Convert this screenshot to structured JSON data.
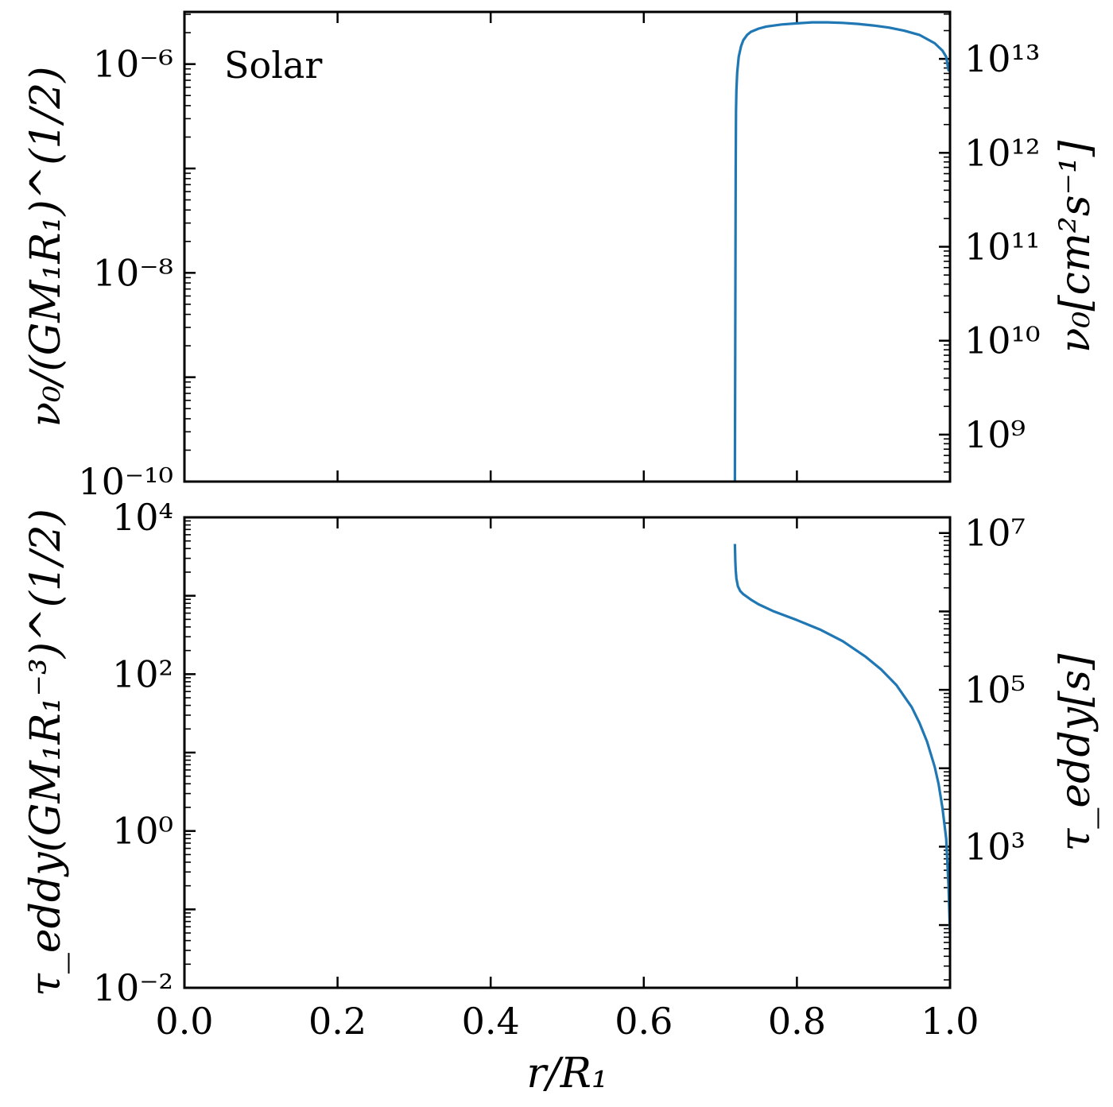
{
  "chart_data": [
    {
      "type": "line",
      "panel": "top",
      "annotation": "Solar",
      "ylabel": "ν₀/(GM₁R₁)^(1/2)",
      "ylabel_right": "ν₀[cm²s⁻¹]",
      "xlim": [
        0.0,
        1.0
      ],
      "ylim_log10": [
        -10,
        -5.5
      ],
      "yscale": "log",
      "y_tick_labels": [
        "10⁻⁶",
        "10⁻⁸",
        "10⁻¹⁰"
      ],
      "y_ticks_log10": [
        -6,
        -8,
        -10
      ],
      "right_tick_labels": [
        "10¹³",
        "10¹²",
        "10¹¹",
        "10¹⁰",
        "10⁹"
      ],
      "right_ticks_log10": [
        13,
        12,
        11,
        10,
        9
      ],
      "right_ylim_log10": [
        8.5,
        13.5
      ],
      "series": [
        {
          "color": "#1f77b4",
          "x": [
            0.719,
            0.7195,
            0.72,
            0.7205,
            0.721,
            0.722,
            0.724,
            0.727,
            0.73,
            0.735,
            0.74,
            0.75,
            0.76,
            0.78,
            0.8,
            0.82,
            0.84,
            0.86,
            0.88,
            0.9,
            0.92,
            0.94,
            0.96,
            0.98,
            0.99,
            0.995,
            0.998,
            1.0
          ],
          "y_log10": [
            -10.0,
            -8.5,
            -7.0,
            -6.45,
            -6.25,
            -6.08,
            -5.93,
            -5.83,
            -5.77,
            -5.72,
            -5.69,
            -5.66,
            -5.64,
            -5.62,
            -5.61,
            -5.6,
            -5.6,
            -5.605,
            -5.615,
            -5.63,
            -5.65,
            -5.68,
            -5.72,
            -5.8,
            -5.87,
            -5.93,
            -6.06,
            -6.0
          ]
        }
      ]
    },
    {
      "type": "line",
      "panel": "bottom",
      "ylabel": "τ_eddy(GM₁R₁⁻³)^(1/2)",
      "ylabel_right": "τ_eddy[s]",
      "xlabel": "r/R₁",
      "xlim": [
        0.0,
        1.0
      ],
      "x_tick_labels": [
        "0.0",
        "0.2",
        "0.4",
        "0.6",
        "0.8",
        "1.0"
      ],
      "x_ticks": [
        0.0,
        0.2,
        0.4,
        0.6,
        0.8,
        1.0
      ],
      "ylim_log10": [
        -2,
        4
      ],
      "yscale": "log",
      "y_tick_labels": [
        "10⁴",
        "10²",
        "10⁰",
        "10⁻²"
      ],
      "y_ticks_log10": [
        4,
        2,
        0,
        -2
      ],
      "right_tick_labels": [
        "10⁷",
        "10⁵",
        "10³"
      ],
      "right_ticks_log10": [
        7,
        5,
        3
      ],
      "right_ylim_log10": [
        1.2,
        7.2
      ],
      "series": [
        {
          "color": "#1f77b4",
          "x": [
            0.719,
            0.7195,
            0.72,
            0.721,
            0.723,
            0.726,
            0.73,
            0.74,
            0.75,
            0.77,
            0.8,
            0.83,
            0.86,
            0.89,
            0.91,
            0.93,
            0.95,
            0.96,
            0.97,
            0.98,
            0.985,
            0.99,
            0.995,
            0.998,
            0.999,
            1.0
          ],
          "y_log10": [
            3.66,
            3.45,
            3.33,
            3.22,
            3.12,
            3.06,
            3.02,
            2.95,
            2.89,
            2.8,
            2.69,
            2.57,
            2.42,
            2.22,
            2.06,
            1.86,
            1.58,
            1.38,
            1.14,
            0.82,
            0.6,
            0.3,
            -0.1,
            -0.7,
            -1.0,
            -1.3
          ]
        }
      ]
    }
  ]
}
